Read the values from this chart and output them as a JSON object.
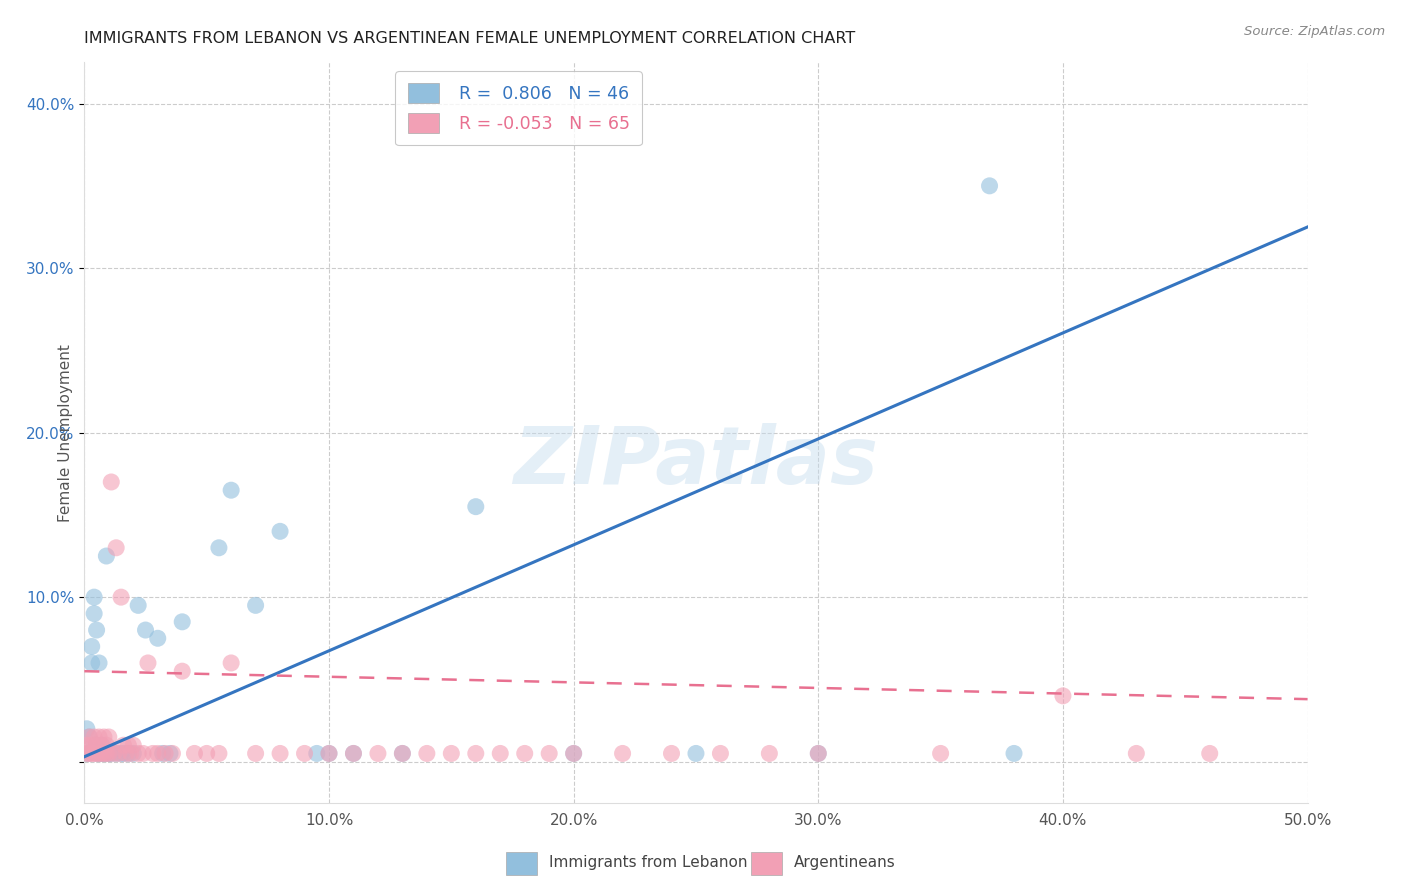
{
  "title": "IMMIGRANTS FROM LEBANON VS ARGENTINEAN FEMALE UNEMPLOYMENT CORRELATION CHART",
  "source": "Source: ZipAtlas.com",
  "ylabel": "Female Unemployment",
  "xlim": [
    0.0,
    0.5
  ],
  "ylim": [
    -0.025,
    0.425
  ],
  "x_ticks": [
    0.0,
    0.1,
    0.2,
    0.3,
    0.4,
    0.5
  ],
  "x_tick_labels": [
    "0.0%",
    "10.0%",
    "20.0%",
    "30.0%",
    "40.0%",
    "50.0%"
  ],
  "y_ticks": [
    0.0,
    0.1,
    0.2,
    0.3,
    0.4
  ],
  "y_tick_labels": [
    "",
    "10.0%",
    "20.0%",
    "30.0%",
    "40.0%"
  ],
  "blue_color": "#92bfdd",
  "pink_color": "#f2a0b5",
  "blue_line_color": "#3575c0",
  "pink_line_color": "#e87090",
  "blue_R": 0.806,
  "blue_N": 46,
  "pink_R": -0.053,
  "pink_N": 65,
  "legend_label_blue": "Immigrants from Lebanon",
  "legend_label_pink": "Argentineans",
  "watermark": "ZIPatlas",
  "blue_line": [
    0.0,
    0.003,
    0.5,
    0.325
  ],
  "pink_line": [
    0.0,
    0.055,
    0.5,
    0.038
  ],
  "blue_scatter_x": [
    0.001,
    0.001,
    0.002,
    0.002,
    0.003,
    0.003,
    0.004,
    0.004,
    0.005,
    0.005,
    0.005,
    0.006,
    0.006,
    0.007,
    0.007,
    0.008,
    0.008,
    0.009,
    0.01,
    0.01,
    0.011,
    0.013,
    0.015,
    0.016,
    0.018,
    0.02,
    0.022,
    0.025,
    0.03,
    0.032,
    0.035,
    0.04,
    0.055,
    0.06,
    0.07,
    0.08,
    0.095,
    0.1,
    0.11,
    0.13,
    0.16,
    0.2,
    0.25,
    0.3,
    0.37,
    0.38
  ],
  "blue_scatter_y": [
    0.005,
    0.02,
    0.005,
    0.015,
    0.06,
    0.07,
    0.1,
    0.09,
    0.005,
    0.01,
    0.08,
    0.06,
    0.005,
    0.005,
    0.01,
    0.005,
    0.005,
    0.125,
    0.005,
    0.005,
    0.005,
    0.005,
    0.005,
    0.005,
    0.005,
    0.005,
    0.095,
    0.08,
    0.075,
    0.005,
    0.005,
    0.085,
    0.13,
    0.165,
    0.095,
    0.14,
    0.005,
    0.005,
    0.005,
    0.005,
    0.155,
    0.005,
    0.005,
    0.005,
    0.35,
    0.005
  ],
  "pink_scatter_x": [
    0.001,
    0.001,
    0.002,
    0.002,
    0.003,
    0.003,
    0.004,
    0.004,
    0.005,
    0.005,
    0.006,
    0.006,
    0.007,
    0.007,
    0.008,
    0.008,
    0.009,
    0.009,
    0.01,
    0.01,
    0.011,
    0.012,
    0.013,
    0.014,
    0.015,
    0.016,
    0.017,
    0.018,
    0.019,
    0.02,
    0.022,
    0.024,
    0.026,
    0.028,
    0.03,
    0.033,
    0.036,
    0.04,
    0.045,
    0.05,
    0.055,
    0.06,
    0.07,
    0.08,
    0.09,
    0.1,
    0.11,
    0.12,
    0.13,
    0.14,
    0.15,
    0.16,
    0.17,
    0.18,
    0.19,
    0.2,
    0.22,
    0.24,
    0.26,
    0.28,
    0.3,
    0.35,
    0.4,
    0.43,
    0.46
  ],
  "pink_scatter_y": [
    0.005,
    0.01,
    0.005,
    0.015,
    0.005,
    0.01,
    0.005,
    0.015,
    0.005,
    0.01,
    0.005,
    0.015,
    0.005,
    0.01,
    0.005,
    0.015,
    0.005,
    0.01,
    0.005,
    0.015,
    0.17,
    0.005,
    0.13,
    0.005,
    0.1,
    0.01,
    0.005,
    0.01,
    0.005,
    0.01,
    0.005,
    0.005,
    0.06,
    0.005,
    0.005,
    0.005,
    0.005,
    0.055,
    0.005,
    0.005,
    0.005,
    0.06,
    0.005,
    0.005,
    0.005,
    0.005,
    0.005,
    0.005,
    0.005,
    0.005,
    0.005,
    0.005,
    0.005,
    0.005,
    0.005,
    0.005,
    0.005,
    0.005,
    0.005,
    0.005,
    0.005,
    0.005,
    0.04,
    0.005,
    0.005
  ]
}
